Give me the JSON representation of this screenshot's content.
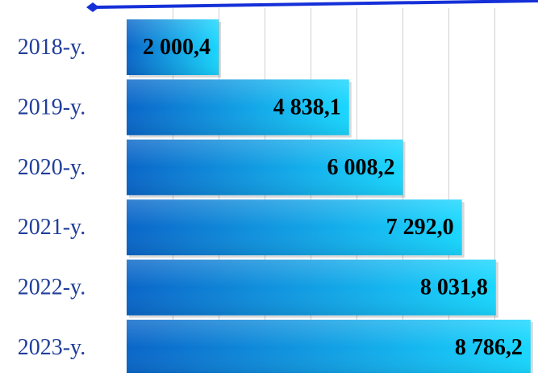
{
  "chart_data": {
    "type": "bar",
    "orientation": "horizontal",
    "categories": [
      "2018-y.",
      "2019-y.",
      "2020-y.",
      "2021-y.",
      "2022-y.",
      "2023-y."
    ],
    "values": [
      2000.4,
      4838.1,
      6008.2,
      7292.0,
      8031.8,
      8786.2
    ],
    "data_labels": [
      "2 000,4",
      "4 838,1",
      "6 008,2",
      "7 292,0",
      "8 031,8",
      "8 786,2"
    ],
    "title": "",
    "xlabel": "",
    "ylabel": "",
    "xlim": [
      0,
      9000
    ],
    "grid": true,
    "legend": "none",
    "colors": {
      "bar_dark": "#0a66c8",
      "bar_light": "#19d7ff",
      "category_label": "#1f3d9a",
      "data_label": "#000000",
      "grid": "#d0d0d0",
      "top_line": "#1530d8"
    }
  }
}
